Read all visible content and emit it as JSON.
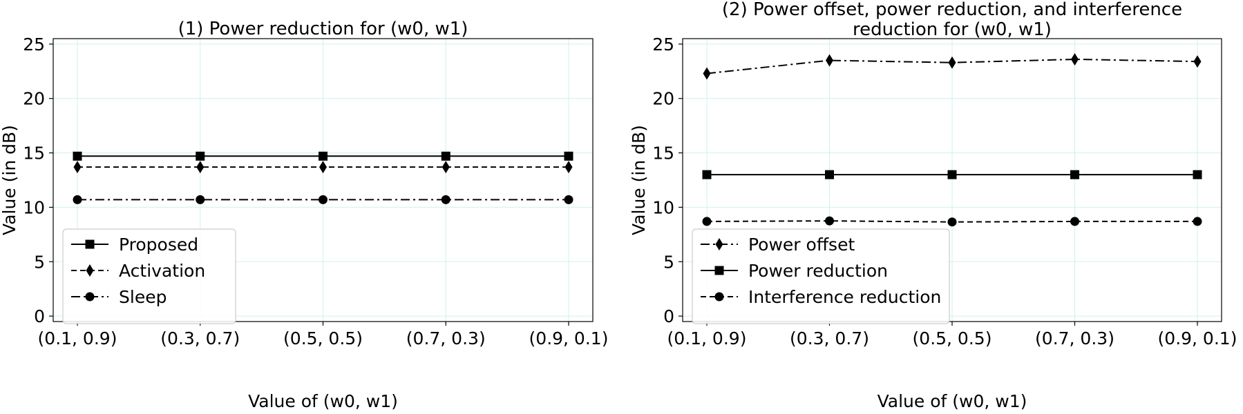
{
  "chart_data": [
    {
      "type": "line",
      "title": [
        "(1) Power reduction for (w0, w1)"
      ],
      "xlabel": "Value of (w0, w1)",
      "ylabel": "Value (in dB)",
      "categories": [
        "(0.1, 0.9)",
        "(0.3, 0.7)",
        "(0.5, 0.5)",
        "(0.7, 0.3)",
        "(0.9, 0.1)"
      ],
      "ylim": [
        -0.5,
        25.5
      ],
      "yticks": [
        0,
        5,
        10,
        15,
        20,
        25
      ],
      "grid": true,
      "legend_position": "bottom-left",
      "series": [
        {
          "name": "Proposed",
          "values": [
            14.7,
            14.7,
            14.7,
            14.7,
            14.7
          ],
          "linestyle": "solid",
          "marker": "square",
          "color": "#000000"
        },
        {
          "name": "Activation",
          "values": [
            13.7,
            13.7,
            13.7,
            13.7,
            13.7
          ],
          "linestyle": "dashed",
          "marker": "diamond",
          "color": "#000000"
        },
        {
          "name": "Sleep",
          "values": [
            10.7,
            10.7,
            10.7,
            10.7,
            10.7
          ],
          "linestyle": "dashdot",
          "marker": "circle",
          "color": "#000000"
        }
      ]
    },
    {
      "type": "line",
      "title": [
        "(2) Power offset, power reduction, and interference",
        "reduction for (w0, w1)"
      ],
      "xlabel": "Value of (w0, w1)",
      "ylabel": "Value (in dB)",
      "categories": [
        "(0.1, 0.9)",
        "(0.3, 0.7)",
        "(0.5, 0.5)",
        "(0.7, 0.3)",
        "(0.9, 0.1)"
      ],
      "ylim": [
        -0.5,
        25.5
      ],
      "yticks": [
        0,
        5,
        10,
        15,
        20,
        25
      ],
      "grid": true,
      "legend_position": "bottom-left",
      "series": [
        {
          "name": "Power offset",
          "values": [
            22.3,
            23.5,
            23.3,
            23.6,
            23.4
          ],
          "linestyle": "dashdot",
          "marker": "diamond",
          "color": "#000000"
        },
        {
          "name": "Power reduction",
          "values": [
            13.0,
            13.0,
            13.0,
            13.0,
            13.0
          ],
          "linestyle": "solid",
          "marker": "square",
          "color": "#000000"
        },
        {
          "name": "Interference reduction",
          "values": [
            8.7,
            8.75,
            8.65,
            8.7,
            8.7
          ],
          "linestyle": "dashed",
          "marker": "circle",
          "color": "#000000"
        }
      ]
    }
  ],
  "colors": {
    "grid": "#cdf2ee",
    "axes": "#000000",
    "legend_border": "#cccccc",
    "background": "#ffffff"
  }
}
